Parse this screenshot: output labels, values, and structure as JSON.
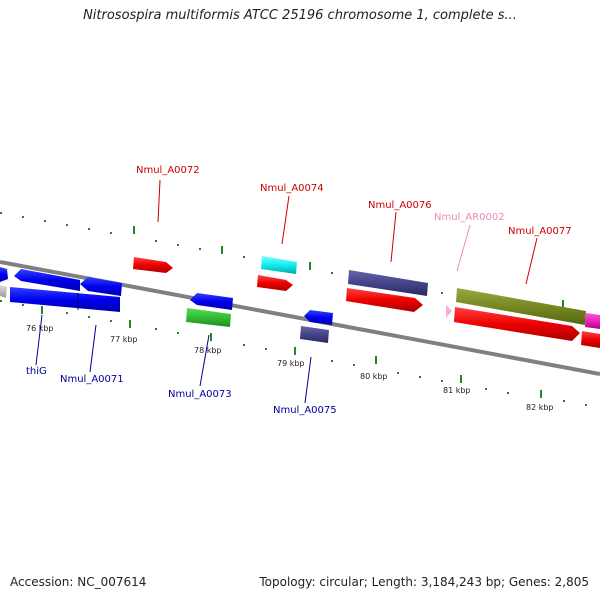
{
  "title": "Nitrosospira multiformis ATCC 25196 chromosome 1, complete s...",
  "footer": {
    "accession": "Accession: NC_007614",
    "summary": "Topology: circular; Length: 3,184,243 bp; Genes: 2,805"
  },
  "scale_labels": [
    "76 kbp",
    "77 kbp",
    "78 kbp",
    "79 kbp",
    "80 kbp",
    "81 kbp",
    "82 kbp"
  ],
  "gene_labels": [
    "thiG",
    "Nmul_A0071",
    "Nmul_A0072",
    "Nmul_A0073",
    "Nmul_A0074",
    "Nmul_A0075",
    "Nmul_A0076",
    "Nmul_AR0002",
    "Nmul_A0077"
  ],
  "colors": {
    "forward_label": "#cc0000",
    "reverse_label": "#000099",
    "rna_label": "#ee88bb",
    "tick": "#228822",
    "backbone": "#808080"
  }
}
